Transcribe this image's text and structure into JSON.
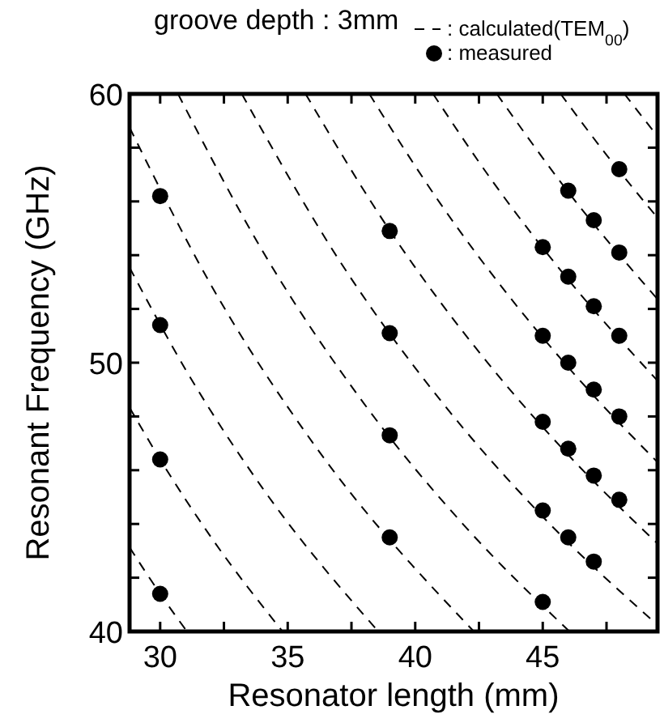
{
  "chart_data": {
    "type": "scatter",
    "title": "groove depth : 3mm",
    "xlabel": "Resonator length (mm)",
    "ylabel": "Resonant Frequency (GHz)",
    "xlim": [
      28.8,
      49.5
    ],
    "ylim": [
      40,
      60
    ],
    "xticks": [
      {
        "value": 30,
        "label": "30"
      },
      {
        "value": 32.5,
        "label": null
      },
      {
        "value": 35,
        "label": "35"
      },
      {
        "value": 37.5,
        "label": null
      },
      {
        "value": 40,
        "label": "40"
      },
      {
        "value": 42.5,
        "label": null
      },
      {
        "value": 45,
        "label": "45"
      },
      {
        "value": 47.5,
        "label": null
      }
    ],
    "yticks": [
      40,
      {
        "value": 42,
        "label": null
      },
      {
        "value": 44,
        "label": null
      },
      {
        "value": 46,
        "label": null
      },
      {
        "value": 48,
        "label": null
      },
      50,
      {
        "value": 52,
        "label": null
      },
      {
        "value": 54,
        "label": null
      },
      {
        "value": 56,
        "label": null
      },
      {
        "value": 58,
        "label": null
      },
      60
    ],
    "grid": false,
    "legend": "top right",
    "series": [
      {
        "name": ": calculated(TEM$_{00}$)",
        "type": "line",
        "line_style": "dashed",
        "color": "#000000",
        "x": [
          28.8,
          30,
          31.05
        ],
        "values": [
          43.13,
          41.4,
          40
        ]
      },
      {
        "type": "line",
        "line_style": "dashed",
        "color": "#000000",
        "x": [
          28.8,
          30,
          32,
          34.8
        ],
        "values": [
          48.33,
          46.4,
          43.5,
          40
        ]
      },
      {
        "type": "line",
        "line_style": "dashed",
        "color": "#000000",
        "x": [
          28.8,
          31,
          34,
          38.55
        ],
        "values": [
          53.54,
          49.74,
          45.35,
          40
        ]
      },
      {
        "type": "line",
        "line_style": "dashed",
        "color": "#000000",
        "x": [
          28.8,
          32,
          36,
          42.3
        ],
        "values": [
          58.75,
          52.88,
          47,
          40
        ]
      },
      {
        "type": "line",
        "line_style": "dashed",
        "color": "#000000",
        "x": [
          30.7,
          34,
          38,
          42,
          46.05
        ],
        "values": [
          60,
          54.18,
          48.47,
          43.86,
          40
        ]
      },
      {
        "type": "line",
        "line_style": "dashed",
        "color": "#000000",
        "x": [
          33.2,
          37,
          41,
          45,
          49.5
        ],
        "values": [
          60,
          53.84,
          48.59,
          44.27,
          40.24
        ]
      },
      {
        "type": "line",
        "line_style": "dashed",
        "color": "#000000",
        "x": [
          35.7,
          39,
          43,
          46,
          49.5
        ],
        "values": [
          60,
          54.92,
          49.81,
          46.57,
          43.27
        ]
      },
      {
        "type": "line",
        "line_style": "dashed",
        "color": "#000000",
        "x": [
          38.2,
          41,
          44,
          47,
          49.5
        ],
        "values": [
          60,
          55.9,
          52.09,
          48.77,
          46.3
        ]
      },
      {
        "type": "line",
        "line_style": "dashed",
        "color": "#000000",
        "x": [
          40.7,
          43,
          46,
          49.5
        ],
        "values": [
          60,
          56.79,
          53.09,
          49.33
        ]
      },
      {
        "type": "line",
        "line_style": "dashed",
        "color": "#000000",
        "x": [
          43.2,
          46,
          49.5
        ],
        "values": [
          60,
          56.35,
          52.36
        ]
      },
      {
        "type": "line",
        "line_style": "dashed",
        "color": "#000000",
        "x": [
          45.7,
          47.5,
          49.5
        ],
        "values": [
          60,
          57.73,
          55.39
        ]
      },
      {
        "type": "line",
        "line_style": "dashed",
        "color": "#000000",
        "x": [
          48.2,
          49.5
        ],
        "values": [
          60,
          58.42
        ]
      },
      {
        "name": ": measured",
        "marker": "circle",
        "color": "#000000",
        "x": [
          30,
          30,
          30,
          30,
          39,
          39,
          39,
          39,
          45,
          45,
          45,
          45,
          45,
          46,
          46,
          46,
          46,
          46,
          47,
          47,
          47,
          47,
          47,
          48,
          48,
          48,
          48,
          48
        ],
        "values": [
          56.2,
          51.4,
          46.4,
          41.4,
          54.9,
          51.1,
          47.3,
          43.5,
          54.3,
          51.0,
          47.8,
          44.5,
          41.1,
          56.4,
          53.2,
          50.0,
          46.8,
          43.5,
          55.3,
          52.1,
          49.0,
          45.8,
          42.6,
          57.2,
          54.1,
          51.0,
          48.0,
          44.9
        ]
      }
    ]
  }
}
